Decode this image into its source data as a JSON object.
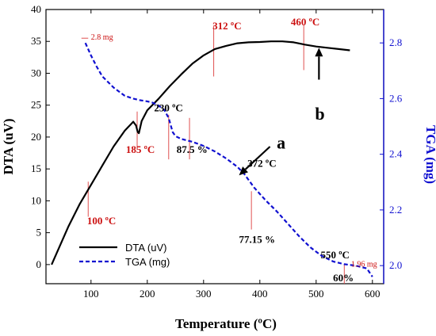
{
  "chart_data": {
    "type": "line",
    "xlabel": "Temperature (ºC)",
    "ylabel_left": "DTA (uV)",
    "ylabel_right": "TGA (mg)",
    "xlim": [
      20,
      620
    ],
    "ylim_left": [
      -3,
      40
    ],
    "ylim_right": [
      1.935,
      2.92
    ],
    "x_ticks": [
      100,
      200,
      300,
      400,
      500,
      600
    ],
    "y_ticks_left": [
      0,
      5,
      10,
      15,
      20,
      25,
      30,
      35,
      40
    ],
    "y_ticks_right": [
      2.0,
      2.2,
      2.4,
      2.6,
      2.8
    ],
    "y_tick_labels_left": [
      "0",
      "5",
      "10",
      "15",
      "20",
      "25",
      "30",
      "35",
      "40"
    ],
    "y_tick_labels_right": [
      "2.0",
      "2.2",
      "2.4",
      "2.6",
      "2.8"
    ],
    "grid": false,
    "legend_position": "bottom-left",
    "series": [
      {
        "name": "DTA (uV)",
        "axis": "left",
        "color": "#000000",
        "style": "solid",
        "x": [
          30,
          40,
          60,
          80,
          100,
          120,
          140,
          160,
          175,
          180,
          183,
          185,
          190,
          200,
          220,
          240,
          260,
          280,
          300,
          320,
          340,
          360,
          380,
          400,
          420,
          440,
          460,
          480,
          500,
          520,
          540,
          560
        ],
        "y": [
          0,
          2,
          6,
          9.5,
          12.5,
          15.5,
          18.5,
          21,
          22.4,
          21.8,
          20.8,
          20.6,
          22.5,
          24.2,
          26,
          28,
          29.8,
          31.5,
          32.8,
          33.8,
          34.3,
          34.7,
          34.85,
          34.9,
          35,
          35,
          34.85,
          34.5,
          34.2,
          34,
          33.8,
          33.6
        ]
      },
      {
        "name": "TGA (mg)",
        "axis": "right",
        "color": "#1010d0",
        "style": "dashed",
        "x": [
          90,
          100,
          110,
          120,
          140,
          160,
          175,
          185,
          200,
          210,
          220,
          230,
          238,
          245,
          250,
          260,
          280,
          300,
          320,
          340,
          360,
          372,
          390,
          410,
          430,
          450,
          470,
          490,
          510,
          530,
          550,
          570,
          590,
          600
        ],
        "y": [
          2.8,
          2.755,
          2.715,
          2.68,
          2.64,
          2.61,
          2.6,
          2.595,
          2.59,
          2.585,
          2.575,
          2.56,
          2.53,
          2.48,
          2.465,
          2.455,
          2.445,
          2.43,
          2.41,
          2.385,
          2.355,
          2.33,
          2.28,
          2.235,
          2.195,
          2.15,
          2.105,
          2.065,
          2.035,
          2.015,
          2.005,
          2.0,
          1.99,
          1.96
        ]
      }
    ],
    "marker_lines": [
      {
        "x": 95,
        "y_top": 13,
        "y_bottom": 7.5
      },
      {
        "x": 182,
        "y_top": 24,
        "y_bottom": 18
      },
      {
        "x": 238,
        "y_top": 23.5,
        "y_bottom": 16.5
      },
      {
        "x": 275,
        "y_top": 23,
        "y_bottom": 16.5
      },
      {
        "x": 318,
        "y_top": 37.5,
        "y_bottom": 29.5
      },
      {
        "x": 385,
        "y_top": 11.5,
        "y_bottom": 5.5
      },
      {
        "x": 478,
        "y_top": 37.5,
        "y_bottom": 30.5
      },
      {
        "x": 550,
        "y_top": 0,
        "y_bottom": -3
      }
    ],
    "tga_start_marker": {
      "x1": 83,
      "x2": 95,
      "y": 35.5
    },
    "annotations": [
      {
        "text": "2.8 mg",
        "class": "ann-small",
        "x": 100,
        "y": 35.3
      },
      {
        "text": "312 ºC",
        "class": "ann-red",
        "x": 316,
        "y": 36.9
      },
      {
        "text": "460 ºC",
        "class": "ann-red",
        "x": 455,
        "y": 37.5
      },
      {
        "text": "230 ºC",
        "class": "ann-black",
        "x": 212,
        "y": 24
      },
      {
        "text": "185 ºC",
        "class": "ann-red",
        "x": 162,
        "y": 17.5
      },
      {
        "text": "87.5 %",
        "class": "ann-black",
        "x": 252,
        "y": 17.5
      },
      {
        "text": "372 ºC",
        "class": "ann-black",
        "x": 378,
        "y": 15.3
      },
      {
        "text": "77.15 %",
        "class": "ann-black",
        "x": 363,
        "y": 3.4
      },
      {
        "text": "100 ºC",
        "class": "ann-red",
        "x": 93,
        "y": 6.3
      },
      {
        "text": "550 ºC",
        "class": "ann-black",
        "x": 508,
        "y": 1.0
      },
      {
        "text": "1.96 mg",
        "class": "ann-small",
        "x": 562,
        "y": -0.3
      },
      {
        "text": "60%",
        "class": "ann-black",
        "x": 530,
        "y": -2.6
      }
    ],
    "callouts": [
      {
        "label": "b",
        "x": 498,
        "y": 22.7,
        "arrow_from": [
          505,
          29
        ],
        "arrow_to": [
          505,
          34
        ]
      },
      {
        "label": "a",
        "x": 430,
        "y": 18.2,
        "arrow_from": [
          418,
          18.5
        ],
        "arrow_to": [
          363,
          14
        ]
      }
    ]
  }
}
